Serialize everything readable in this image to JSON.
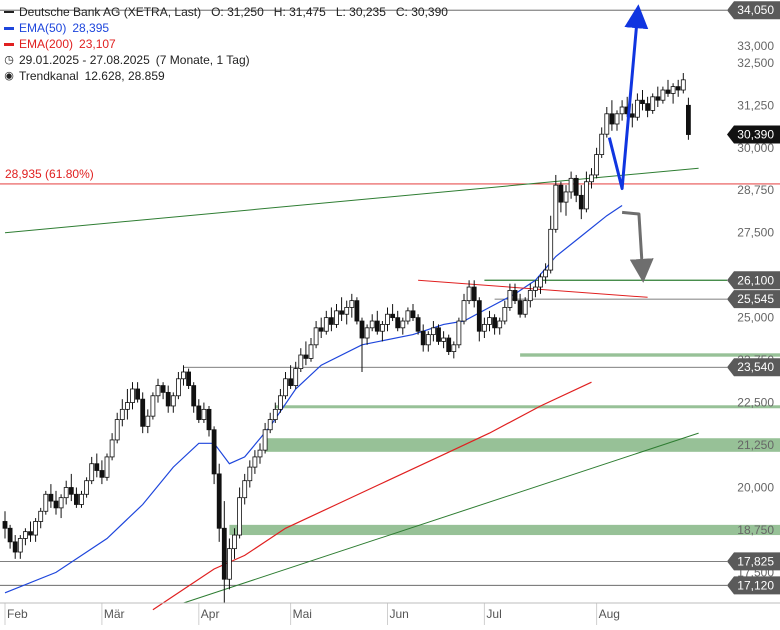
{
  "chart_data": {
    "type": "candlestick",
    "instrument": "Deutsche Bank AG (XETRA, Last)",
    "ohlc_label": {
      "open": "O: 31,250",
      "high": "H: 31,475",
      "low": "L: 30,235",
      "close": "C: 30,390"
    },
    "indicators": [
      {
        "name": "EMA(50)",
        "value": "28,395",
        "color": "#1e46dc"
      },
      {
        "name": "EMA(200)",
        "value": "23,107",
        "color": "#e02020"
      }
    ],
    "period_label": "29.01.2025 - 27.08.2025",
    "period_detail": "(7 Monate, 1 Tag)",
    "trend_channel_label": "Trendkanal",
    "trend_channel_values": "12.628, 28.859",
    "fib_label": "28,935 (61.80%)",
    "x_tick_labels": [
      "Feb",
      "Mär",
      "Apr",
      "Mai",
      "Jun",
      "Jul",
      "Aug"
    ],
    "y_tick_labels": [
      "17,500",
      "18,750",
      "20,000",
      "21,250",
      "22,500",
      "23,750",
      "25,000",
      "27,500",
      "28,750",
      "30,000",
      "31,250",
      "32,500",
      "33,000"
    ],
    "y_range": [
      16.6,
      34.35
    ],
    "price_tags": [
      {
        "label": "34,050",
        "value": 34.05,
        "style": "gray"
      },
      {
        "label": "30,390",
        "value": 30.39,
        "style": "black"
      },
      {
        "label": "26,100",
        "value": 26.1,
        "style": "gray"
      },
      {
        "label": "25,545",
        "value": 25.545,
        "style": "gray"
      },
      {
        "label": "23,540",
        "value": 23.54,
        "style": "gray"
      },
      {
        "label": "17,825",
        "value": 17.825,
        "style": "gray"
      },
      {
        "label": "17,120",
        "value": 17.12,
        "style": "gray"
      }
    ],
    "horizontal_lines": [
      34.05,
      26.1,
      25.545,
      23.54,
      17.825,
      17.12
    ],
    "support_zones": [
      [
        23.85,
        23.95
      ],
      [
        22.35,
        22.42
      ],
      [
        21.05,
        21.45
      ],
      [
        18.6,
        18.9
      ]
    ],
    "candles": [
      [
        19.0,
        19.3,
        18.5,
        18.8
      ],
      [
        18.8,
        18.9,
        18.2,
        18.4
      ],
      [
        18.4,
        18.6,
        17.9,
        18.1
      ],
      [
        18.1,
        18.6,
        17.9,
        18.5
      ],
      [
        18.5,
        18.8,
        18.3,
        18.7
      ],
      [
        18.7,
        19.0,
        18.4,
        18.6
      ],
      [
        18.6,
        19.1,
        18.4,
        19.0
      ],
      [
        19.0,
        19.4,
        18.8,
        19.3
      ],
      [
        19.3,
        19.9,
        19.2,
        19.8
      ],
      [
        19.8,
        20.1,
        19.4,
        19.6
      ],
      [
        19.6,
        19.9,
        19.2,
        19.4
      ],
      [
        19.4,
        19.8,
        19.1,
        19.7
      ],
      [
        19.7,
        20.2,
        19.5,
        20.0
      ],
      [
        20.0,
        20.4,
        19.6,
        19.8
      ],
      [
        19.8,
        20.0,
        19.4,
        19.5
      ],
      [
        19.5,
        19.9,
        19.4,
        19.8
      ],
      [
        19.8,
        20.3,
        19.7,
        20.2
      ],
      [
        20.2,
        20.9,
        20.1,
        20.7
      ],
      [
        20.7,
        21.0,
        20.3,
        20.5
      ],
      [
        20.5,
        20.8,
        20.1,
        20.3
      ],
      [
        20.3,
        21.0,
        20.2,
        20.9
      ],
      [
        20.9,
        21.6,
        20.8,
        21.4
      ],
      [
        21.4,
        22.2,
        21.3,
        22.0
      ],
      [
        22.0,
        22.6,
        21.8,
        22.3
      ],
      [
        22.3,
        22.9,
        22.0,
        22.5
      ],
      [
        22.5,
        23.1,
        22.3,
        22.9
      ],
      [
        22.9,
        23.1,
        22.5,
        22.6
      ],
      [
        22.6,
        22.8,
        21.6,
        21.8
      ],
      [
        21.8,
        22.3,
        21.6,
        22.1
      ],
      [
        22.1,
        22.8,
        22.0,
        22.7
      ],
      [
        22.7,
        23.2,
        22.5,
        23.0
      ],
      [
        23.0,
        23.1,
        22.6,
        22.8
      ],
      [
        22.8,
        23.0,
        22.2,
        22.4
      ],
      [
        22.4,
        22.8,
        22.2,
        22.7
      ],
      [
        22.7,
        23.4,
        22.6,
        23.2
      ],
      [
        23.2,
        23.6,
        23.0,
        23.4
      ],
      [
        23.4,
        23.5,
        22.9,
        23.0
      ],
      [
        23.0,
        23.1,
        22.2,
        22.4
      ],
      [
        22.4,
        22.6,
        21.9,
        22.0
      ],
      [
        22.0,
        22.5,
        21.9,
        22.3
      ],
      [
        22.3,
        22.4,
        21.5,
        21.7
      ],
      [
        21.7,
        21.8,
        20.1,
        20.4
      ],
      [
        20.4,
        20.7,
        18.4,
        18.8
      ],
      [
        18.8,
        19.6,
        16.6,
        17.3
      ],
      [
        17.3,
        18.5,
        17.0,
        18.2
      ],
      [
        18.2,
        18.8,
        17.9,
        18.6
      ],
      [
        18.6,
        20.0,
        18.5,
        19.7
      ],
      [
        19.7,
        20.4,
        19.5,
        20.2
      ],
      [
        20.2,
        20.8,
        20.0,
        20.6
      ],
      [
        20.6,
        21.1,
        20.4,
        20.9
      ],
      [
        20.9,
        21.3,
        20.7,
        21.1
      ],
      [
        21.1,
        21.9,
        21.0,
        21.7
      ],
      [
        21.7,
        22.2,
        21.6,
        22.0
      ],
      [
        22.0,
        22.5,
        21.9,
        22.3
      ],
      [
        22.3,
        22.9,
        22.2,
        22.7
      ],
      [
        22.7,
        23.4,
        22.6,
        23.2
      ],
      [
        23.2,
        23.6,
        22.9,
        23.0
      ],
      [
        23.0,
        23.7,
        22.9,
        23.5
      ],
      [
        23.5,
        24.1,
        23.4,
        23.9
      ],
      [
        23.9,
        24.3,
        23.6,
        23.8
      ],
      [
        23.8,
        24.4,
        23.7,
        24.2
      ],
      [
        24.2,
        24.9,
        24.1,
        24.7
      ],
      [
        24.7,
        25.0,
        24.4,
        24.6
      ],
      [
        24.6,
        25.2,
        24.5,
        25.0
      ],
      [
        25.0,
        25.3,
        24.6,
        24.8
      ],
      [
        24.8,
        25.4,
        24.7,
        25.2
      ],
      [
        25.2,
        25.6,
        24.9,
        25.1
      ],
      [
        25.1,
        25.5,
        24.8,
        25.3
      ],
      [
        25.3,
        25.7,
        25.0,
        25.5
      ],
      [
        25.5,
        25.6,
        24.8,
        24.9
      ],
      [
        24.9,
        25.0,
        23.4,
        24.4
      ],
      [
        24.4,
        24.8,
        24.2,
        24.7
      ],
      [
        24.7,
        25.1,
        24.6,
        24.9
      ],
      [
        24.9,
        25.2,
        24.5,
        24.6
      ],
      [
        24.6,
        24.9,
        24.3,
        24.8
      ],
      [
        24.8,
        25.3,
        24.6,
        25.1
      ],
      [
        25.1,
        25.4,
        24.9,
        25.0
      ],
      [
        25.0,
        25.2,
        24.6,
        24.7
      ],
      [
        24.7,
        25.0,
        24.5,
        24.9
      ],
      [
        24.9,
        25.3,
        24.8,
        25.2
      ],
      [
        25.2,
        25.4,
        24.9,
        25.0
      ],
      [
        25.0,
        25.1,
        24.5,
        24.6
      ],
      [
        24.6,
        24.8,
        24.0,
        24.2
      ],
      [
        24.2,
        24.6,
        24.0,
        24.5
      ],
      [
        24.5,
        24.9,
        24.3,
        24.7
      ],
      [
        24.7,
        24.8,
        24.2,
        24.3
      ],
      [
        24.3,
        24.6,
        24.1,
        24.4
      ],
      [
        24.4,
        24.5,
        23.9,
        24.0
      ],
      [
        24.0,
        24.3,
        23.8,
        24.2
      ],
      [
        24.2,
        25.0,
        24.1,
        24.9
      ],
      [
        24.9,
        25.7,
        24.8,
        25.5
      ],
      [
        25.5,
        26.1,
        25.4,
        25.9
      ],
      [
        25.9,
        26.1,
        25.3,
        25.5
      ],
      [
        25.5,
        25.6,
        24.3,
        24.6
      ],
      [
        24.6,
        25.0,
        24.4,
        24.8
      ],
      [
        24.8,
        25.2,
        24.6,
        25.0
      ],
      [
        25.0,
        25.1,
        24.5,
        24.7
      ],
      [
        24.7,
        25.0,
        24.5,
        24.9
      ],
      [
        24.9,
        25.5,
        24.8,
        25.3
      ],
      [
        25.3,
        26.0,
        25.2,
        25.8
      ],
      [
        25.8,
        26.0,
        25.4,
        25.5
      ],
      [
        25.5,
        25.7,
        25.0,
        25.1
      ],
      [
        25.1,
        25.6,
        25.0,
        25.5
      ],
      [
        25.5,
        26.0,
        25.3,
        25.8
      ],
      [
        25.8,
        26.1,
        25.6,
        25.9
      ],
      [
        25.9,
        26.3,
        25.7,
        26.2
      ],
      [
        26.2,
        26.6,
        26.0,
        26.4
      ],
      [
        26.4,
        28.0,
        26.3,
        27.6
      ],
      [
        27.6,
        29.2,
        27.5,
        28.9
      ],
      [
        28.9,
        29.0,
        28.1,
        28.4
      ],
      [
        28.4,
        28.9,
        28.0,
        28.7
      ],
      [
        28.7,
        29.3,
        28.5,
        29.1
      ],
      [
        29.1,
        29.2,
        28.4,
        28.6
      ],
      [
        28.6,
        28.9,
        27.9,
        28.2
      ],
      [
        28.2,
        29.3,
        28.1,
        29.0
      ],
      [
        29.0,
        29.4,
        28.8,
        29.2
      ],
      [
        29.2,
        30.0,
        29.1,
        29.8
      ],
      [
        29.8,
        30.6,
        29.7,
        30.4
      ],
      [
        30.4,
        31.2,
        30.3,
        31.0
      ],
      [
        31.0,
        31.4,
        30.5,
        30.7
      ],
      [
        30.7,
        31.1,
        30.5,
        31.0
      ],
      [
        31.0,
        31.4,
        30.8,
        31.2
      ],
      [
        31.2,
        31.5,
        30.9,
        31.0
      ],
      [
        31.0,
        31.3,
        30.6,
        30.9
      ],
      [
        30.9,
        31.6,
        30.8,
        31.4
      ],
      [
        31.4,
        31.7,
        31.1,
        31.3
      ],
      [
        31.3,
        31.5,
        30.9,
        31.1
      ],
      [
        31.1,
        31.6,
        31.0,
        31.5
      ],
      [
        31.5,
        31.8,
        31.2,
        31.4
      ],
      [
        31.4,
        31.8,
        31.3,
        31.7
      ],
      [
        31.7,
        32.0,
        31.5,
        31.6
      ],
      [
        31.6,
        31.9,
        31.3,
        31.8
      ],
      [
        31.8,
        32.0,
        31.5,
        31.7
      ],
      [
        31.7,
        32.2,
        31.6,
        32.0
      ],
      [
        31.25,
        31.475,
        30.235,
        30.39
      ]
    ],
    "ema50": [
      [
        0,
        16.9
      ],
      [
        10,
        17.5
      ],
      [
        20,
        18.5
      ],
      [
        27,
        19.5
      ],
      [
        33,
        20.6
      ],
      [
        38,
        21.3
      ],
      [
        41,
        21.3
      ],
      [
        44,
        20.7
      ],
      [
        47,
        20.9
      ],
      [
        52,
        21.8
      ],
      [
        57,
        22.9
      ],
      [
        62,
        23.6
      ],
      [
        70,
        24.2
      ],
      [
        80,
        24.5
      ],
      [
        86,
        24.8
      ],
      [
        90,
        24.9
      ],
      [
        95,
        25.3
      ],
      [
        100,
        25.7
      ],
      [
        104,
        26.1
      ],
      [
        108,
        26.8
      ],
      [
        113,
        27.4
      ],
      [
        118,
        28.0
      ],
      [
        121,
        28.3
      ]
    ],
    "ema200": [
      [
        29,
        16.4
      ],
      [
        35,
        17.0
      ],
      [
        41,
        17.6
      ],
      [
        47,
        18.0
      ],
      [
        55,
        18.8
      ],
      [
        65,
        19.5
      ],
      [
        75,
        20.2
      ],
      [
        85,
        20.9
      ],
      [
        95,
        21.6
      ],
      [
        105,
        22.4
      ],
      [
        115,
        23.1
      ]
    ],
    "trend_channel_upper": [
      [
        0,
        27.5
      ],
      [
        136,
        29.4
      ]
    ],
    "trend_channel_lower": [
      [
        35,
        16.6
      ],
      [
        136,
        21.6
      ]
    ],
    "fib_level": 28.935,
    "red_trend_line": [
      [
        81,
        26.1
      ],
      [
        126,
        25.6
      ]
    ],
    "arrow_up": [
      [
        121,
        28.8
      ],
      [
        124,
        34.05
      ]
    ],
    "arrow_down": [
      [
        121,
        28.1
      ],
      [
        125,
        26.2
      ]
    ]
  }
}
